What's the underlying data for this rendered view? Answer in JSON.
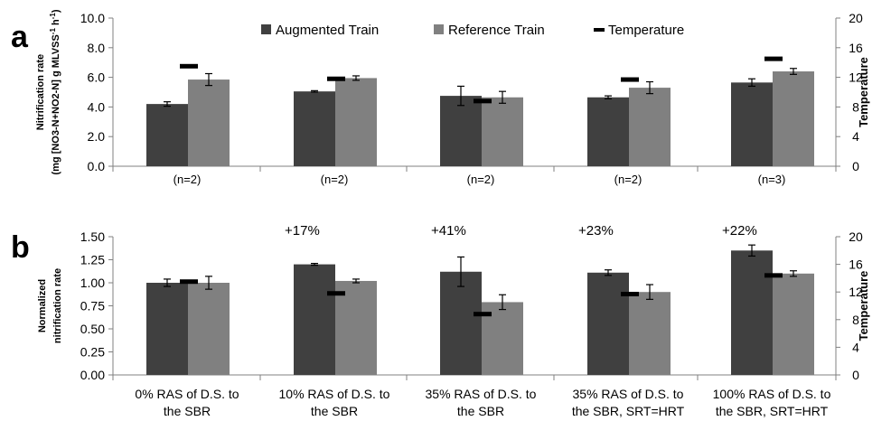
{
  "chart_data": [
    {
      "type": "bar",
      "panel_label": "a",
      "categories": [
        "(n=2)",
        "(n=2)",
        "(n=2)",
        "(n=2)",
        "(n=3)"
      ],
      "ylabel": "Nitrification rate",
      "ylabel_line2": "(mg [NO3-N+NO2-N] g MLVSS",
      "ylabel_sup": "-1",
      "ylabel_mid": " h",
      "ylabel_end": ")",
      "y2label": "Temperature",
      "ylim": [
        0,
        10
      ],
      "y_ticks": [
        "0.0",
        "2.0",
        "4.0",
        "6.0",
        "8.0",
        "10.0"
      ],
      "y2lim": [
        0,
        20
      ],
      "y2_ticks": [
        "0",
        "4",
        "8",
        "12",
        "16",
        "20"
      ],
      "legend": [
        "Augmented Train",
        "Reference Train",
        "Temperature"
      ],
      "legend_position": "top",
      "series": [
        {
          "name": "Augmented Train",
          "color": "#404040",
          "values": [
            4.2,
            5.05,
            4.75,
            4.65,
            5.65
          ],
          "errors": [
            0.15,
            0.05,
            0.65,
            0.1,
            0.25
          ]
        },
        {
          "name": "Reference Train",
          "color": "#808080",
          "values": [
            5.85,
            5.95,
            4.65,
            5.3,
            6.4
          ],
          "errors": [
            0.4,
            0.15,
            0.4,
            0.4,
            0.2
          ]
        }
      ],
      "temperature": [
        13.5,
        11.8,
        8.8,
        11.7,
        14.5
      ]
    },
    {
      "type": "bar",
      "panel_label": "b",
      "categories": [
        [
          "0% RAS of D.S. to",
          "the SBR"
        ],
        [
          "10% RAS of D.S. to",
          "the SBR"
        ],
        [
          "35% RAS of D.S. to",
          "the SBR"
        ],
        [
          "35% RAS of D.S. to",
          "the SBR, SRT=HRT"
        ],
        [
          "100% RAS of D.S. to",
          "the SBR, SRT=HRT"
        ]
      ],
      "ylabel": "Normalized",
      "ylabel_line2": "nitrification rate",
      "y2label": "Temperature",
      "ylim": [
        0,
        1.5
      ],
      "y_ticks": [
        "0.00",
        "0.25",
        "0.50",
        "0.75",
        "1.00",
        "1.25",
        "1.50"
      ],
      "y2lim": [
        0,
        20
      ],
      "y2_ticks": [
        "0",
        "4",
        "8",
        "12",
        "16",
        "20"
      ],
      "annotations": [
        "",
        "+17%",
        "+41%",
        "+23%",
        "+22%"
      ],
      "series": [
        {
          "name": "Augmented Train",
          "color": "#404040",
          "values": [
            1.0,
            1.2,
            1.12,
            1.11,
            1.35
          ],
          "errors": [
            0.04,
            0.01,
            0.16,
            0.03,
            0.06
          ]
        },
        {
          "name": "Reference Train",
          "color": "#808080",
          "values": [
            1.0,
            1.02,
            0.79,
            0.9,
            1.1
          ],
          "errors": [
            0.07,
            0.02,
            0.08,
            0.08,
            0.03
          ]
        }
      ],
      "temperature": [
        13.5,
        11.8,
        8.8,
        11.7,
        14.4
      ]
    }
  ]
}
